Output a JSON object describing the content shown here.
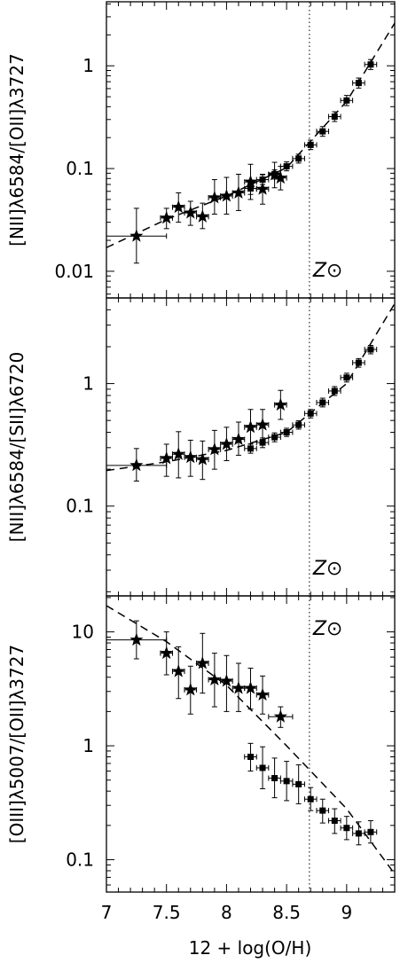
{
  "figure": {
    "xlabel": "12 + log(O/H)",
    "solar_label": "Z⊙",
    "solar_line_x": 8.69,
    "x_ticks": [
      "7",
      "7.5",
      "8",
      "8.5",
      "9"
    ],
    "colors": {
      "ink": "#000000",
      "background": "#ffffff"
    }
  },
  "chart_data": [
    {
      "type": "scatter",
      "ylabel": "[NII]λ6584/[OII]λ3727",
      "yscale": "log",
      "xlim": [
        7,
        9.4
      ],
      "ylim": [
        0.0055,
        4.2
      ],
      "y_ticks": [
        "0.01",
        "0.1",
        "1"
      ],
      "solar_label_shown": true,
      "series": [
        {
          "marker": "star",
          "points": [
            {
              "x": 7.25,
              "y": 0.022,
              "xerr": 0.25,
              "ylo": 0.012,
              "yhi": 0.041
            },
            {
              "x": 7.5,
              "y": 0.033,
              "xerr": 0.05,
              "ylo": 0.026,
              "yhi": 0.041
            },
            {
              "x": 7.6,
              "y": 0.042,
              "xerr": 0.05,
              "ylo": 0.03,
              "yhi": 0.058
            },
            {
              "x": 7.7,
              "y": 0.037,
              "xerr": 0.05,
              "ylo": 0.028,
              "yhi": 0.048
            },
            {
              "x": 7.8,
              "y": 0.034,
              "xerr": 0.05,
              "ylo": 0.026,
              "yhi": 0.046
            },
            {
              "x": 7.9,
              "y": 0.052,
              "xerr": 0.05,
              "ylo": 0.036,
              "yhi": 0.078
            },
            {
              "x": 8.0,
              "y": 0.054,
              "xerr": 0.05,
              "ylo": 0.036,
              "yhi": 0.082
            },
            {
              "x": 8.1,
              "y": 0.058,
              "xerr": 0.05,
              "ylo": 0.039,
              "yhi": 0.088
            },
            {
              "x": 8.2,
              "y": 0.074,
              "xerr": 0.05,
              "ylo": 0.05,
              "yhi": 0.11
            },
            {
              "x": 8.3,
              "y": 0.063,
              "xerr": 0.05,
              "ylo": 0.045,
              "yhi": 0.088
            },
            {
              "x": 8.4,
              "y": 0.087,
              "xerr": 0.05,
              "ylo": 0.065,
              "yhi": 0.115
            },
            {
              "x": 8.45,
              "y": 0.081,
              "xerr": 0.05,
              "ylo": 0.062,
              "yhi": 0.105
            }
          ]
        },
        {
          "marker": "square",
          "points": [
            {
              "x": 8.2,
              "y": 0.064,
              "xerr": 0.05,
              "ylo": 0.056,
              "yhi": 0.072
            },
            {
              "x": 8.3,
              "y": 0.078,
              "xerr": 0.05,
              "ylo": 0.07,
              "yhi": 0.087
            },
            {
              "x": 8.4,
              "y": 0.088,
              "xerr": 0.05,
              "ylo": 0.079,
              "yhi": 0.097
            },
            {
              "x": 8.5,
              "y": 0.105,
              "xerr": 0.05,
              "ylo": 0.095,
              "yhi": 0.116
            },
            {
              "x": 8.6,
              "y": 0.125,
              "xerr": 0.05,
              "ylo": 0.113,
              "yhi": 0.138
            },
            {
              "x": 8.7,
              "y": 0.17,
              "xerr": 0.05,
              "ylo": 0.153,
              "yhi": 0.189
            },
            {
              "x": 8.8,
              "y": 0.23,
              "xerr": 0.05,
              "ylo": 0.206,
              "yhi": 0.256
            },
            {
              "x": 8.9,
              "y": 0.32,
              "xerr": 0.05,
              "ylo": 0.287,
              "yhi": 0.357
            },
            {
              "x": 9.0,
              "y": 0.46,
              "xerr": 0.05,
              "ylo": 0.41,
              "yhi": 0.515
            },
            {
              "x": 9.1,
              "y": 0.68,
              "xerr": 0.05,
              "ylo": 0.607,
              "yhi": 0.76
            },
            {
              "x": 9.2,
              "y": 1.03,
              "xerr": 0.05,
              "ylo": 0.92,
              "yhi": 1.15
            }
          ]
        }
      ],
      "fit": {
        "style": "dashed",
        "points": [
          [
            7.0,
            0.017
          ],
          [
            7.5,
            0.032
          ],
          [
            8.0,
            0.054
          ],
          [
            8.5,
            0.102
          ],
          [
            9.0,
            0.45
          ],
          [
            9.4,
            2.6
          ]
        ]
      }
    },
    {
      "type": "scatter",
      "ylabel": "[NII]λ6584/[SII]λ6720",
      "yscale": "log",
      "xlim": [
        7,
        9.4
      ],
      "ylim": [
        0.0185,
        5.0
      ],
      "y_ticks": [
        "0.1",
        "1"
      ],
      "solar_label_shown": true,
      "series": [
        {
          "marker": "star",
          "points": [
            {
              "x": 7.25,
              "y": 0.215,
              "xerr": 0.25,
              "ylo": 0.16,
              "yhi": 0.295
            },
            {
              "x": 7.5,
              "y": 0.245,
              "xerr": 0.05,
              "ylo": 0.175,
              "yhi": 0.32
            },
            {
              "x": 7.6,
              "y": 0.265,
              "xerr": 0.05,
              "ylo": 0.17,
              "yhi": 0.405
            },
            {
              "x": 7.7,
              "y": 0.25,
              "xerr": 0.05,
              "ylo": 0.175,
              "yhi": 0.345
            },
            {
              "x": 7.8,
              "y": 0.24,
              "xerr": 0.05,
              "ylo": 0.165,
              "yhi": 0.34
            },
            {
              "x": 7.9,
              "y": 0.29,
              "xerr": 0.05,
              "ylo": 0.2,
              "yhi": 0.415
            },
            {
              "x": 8.0,
              "y": 0.32,
              "xerr": 0.05,
              "ylo": 0.235,
              "yhi": 0.44
            },
            {
              "x": 8.1,
              "y": 0.35,
              "xerr": 0.05,
              "ylo": 0.26,
              "yhi": 0.485
            },
            {
              "x": 8.2,
              "y": 0.44,
              "xerr": 0.05,
              "ylo": 0.32,
              "yhi": 0.615
            },
            {
              "x": 8.3,
              "y": 0.46,
              "xerr": 0.05,
              "ylo": 0.35,
              "yhi": 0.615
            },
            {
              "x": 8.45,
              "y": 0.67,
              "xerr": 0.05,
              "ylo": 0.51,
              "yhi": 0.88
            }
          ]
        },
        {
          "marker": "square",
          "points": [
            {
              "x": 8.2,
              "y": 0.295,
              "xerr": 0.05,
              "ylo": 0.27,
              "yhi": 0.322
            },
            {
              "x": 8.3,
              "y": 0.33,
              "xerr": 0.05,
              "ylo": 0.3,
              "yhi": 0.36
            },
            {
              "x": 8.4,
              "y": 0.365,
              "xerr": 0.05,
              "ylo": 0.335,
              "yhi": 0.396
            },
            {
              "x": 8.5,
              "y": 0.4,
              "xerr": 0.05,
              "ylo": 0.37,
              "yhi": 0.432
            },
            {
              "x": 8.6,
              "y": 0.46,
              "xerr": 0.05,
              "ylo": 0.425,
              "yhi": 0.497
            },
            {
              "x": 8.7,
              "y": 0.57,
              "xerr": 0.05,
              "ylo": 0.525,
              "yhi": 0.615
            },
            {
              "x": 8.8,
              "y": 0.7,
              "xerr": 0.05,
              "ylo": 0.645,
              "yhi": 0.76
            },
            {
              "x": 8.9,
              "y": 0.87,
              "xerr": 0.05,
              "ylo": 0.8,
              "yhi": 0.945
            },
            {
              "x": 9.0,
              "y": 1.12,
              "xerr": 0.05,
              "ylo": 1.03,
              "yhi": 1.215
            },
            {
              "x": 9.1,
              "y": 1.48,
              "xerr": 0.05,
              "ylo": 1.36,
              "yhi": 1.6
            },
            {
              "x": 9.2,
              "y": 1.9,
              "xerr": 0.05,
              "ylo": 1.75,
              "yhi": 2.05
            }
          ]
        }
      ],
      "fit": {
        "style": "dashed",
        "points": [
          [
            7.0,
            0.195
          ],
          [
            7.5,
            0.23
          ],
          [
            8.0,
            0.285
          ],
          [
            8.5,
            0.4
          ],
          [
            9.0,
            1.0
          ],
          [
            9.4,
            4.5
          ]
        ]
      }
    },
    {
      "type": "scatter",
      "ylabel": "[OIII]λ5007/[OII]λ3727",
      "yscale": "log",
      "xlim": [
        7,
        9.4
      ],
      "ylim": [
        0.052,
        20.7
      ],
      "y_ticks": [
        "0.1",
        "1",
        "10"
      ],
      "solar_label_shown": true,
      "series": [
        {
          "marker": "star",
          "points": [
            {
              "x": 7.25,
              "y": 8.5,
              "xerr": 0.25,
              "ylo": 5.8,
              "yhi": 12.5
            },
            {
              "x": 7.5,
              "y": 6.5,
              "xerr": 0.05,
              "ylo": 4.2,
              "yhi": 10.0
            },
            {
              "x": 7.6,
              "y": 4.5,
              "xerr": 0.05,
              "ylo": 2.6,
              "yhi": 7.4
            },
            {
              "x": 7.7,
              "y": 3.1,
              "xerr": 0.05,
              "ylo": 1.9,
              "yhi": 5.0
            },
            {
              "x": 7.8,
              "y": 5.3,
              "xerr": 0.05,
              "ylo": 2.9,
              "yhi": 9.7
            },
            {
              "x": 7.9,
              "y": 3.8,
              "xerr": 0.05,
              "ylo": 2.2,
              "yhi": 6.5
            },
            {
              "x": 8.0,
              "y": 3.7,
              "xerr": 0.05,
              "ylo": 2.0,
              "yhi": 6.2
            },
            {
              "x": 8.1,
              "y": 3.2,
              "xerr": 0.05,
              "ylo": 2.0,
              "yhi": 5.3
            },
            {
              "x": 8.2,
              "y": 3.2,
              "xerr": 0.05,
              "ylo": 2.1,
              "yhi": 4.8
            },
            {
              "x": 8.3,
              "y": 2.8,
              "xerr": 0.05,
              "ylo": 1.9,
              "yhi": 4.1
            },
            {
              "x": 8.45,
              "y": 1.8,
              "xerr": 0.1,
              "ylo": 1.45,
              "yhi": 2.2
            }
          ]
        },
        {
          "marker": "square",
          "points": [
            {
              "x": 8.2,
              "y": 0.8,
              "xerr": 0.05,
              "ylo": 0.6,
              "yhi": 1.05
            },
            {
              "x": 8.3,
              "y": 0.64,
              "xerr": 0.05,
              "ylo": 0.42,
              "yhi": 0.98
            },
            {
              "x": 8.4,
              "y": 0.52,
              "xerr": 0.05,
              "ylo": 0.35,
              "yhi": 0.78
            },
            {
              "x": 8.5,
              "y": 0.49,
              "xerr": 0.05,
              "ylo": 0.33,
              "yhi": 0.73
            },
            {
              "x": 8.6,
              "y": 0.46,
              "xerr": 0.05,
              "ylo": 0.31,
              "yhi": 0.68
            },
            {
              "x": 8.7,
              "y": 0.34,
              "xerr": 0.05,
              "ylo": 0.27,
              "yhi": 0.43
            },
            {
              "x": 8.8,
              "y": 0.27,
              "xerr": 0.05,
              "ylo": 0.21,
              "yhi": 0.34
            },
            {
              "x": 8.9,
              "y": 0.22,
              "xerr": 0.05,
              "ylo": 0.17,
              "yhi": 0.28
            },
            {
              "x": 9.0,
              "y": 0.19,
              "xerr": 0.05,
              "ylo": 0.15,
              "yhi": 0.24
            },
            {
              "x": 9.1,
              "y": 0.17,
              "xerr": 0.05,
              "ylo": 0.135,
              "yhi": 0.215
            },
            {
              "x": 9.2,
              "y": 0.175,
              "xerr": 0.05,
              "ylo": 0.14,
              "yhi": 0.22
            }
          ]
        }
      ],
      "fit": {
        "style": "dashed",
        "points": [
          [
            7.0,
            17.0
          ],
          [
            7.5,
            8.2
          ],
          [
            8.0,
            3.4
          ],
          [
            8.5,
            1.0
          ],
          [
            9.0,
            0.28
          ],
          [
            9.4,
            0.075
          ]
        ]
      }
    }
  ]
}
